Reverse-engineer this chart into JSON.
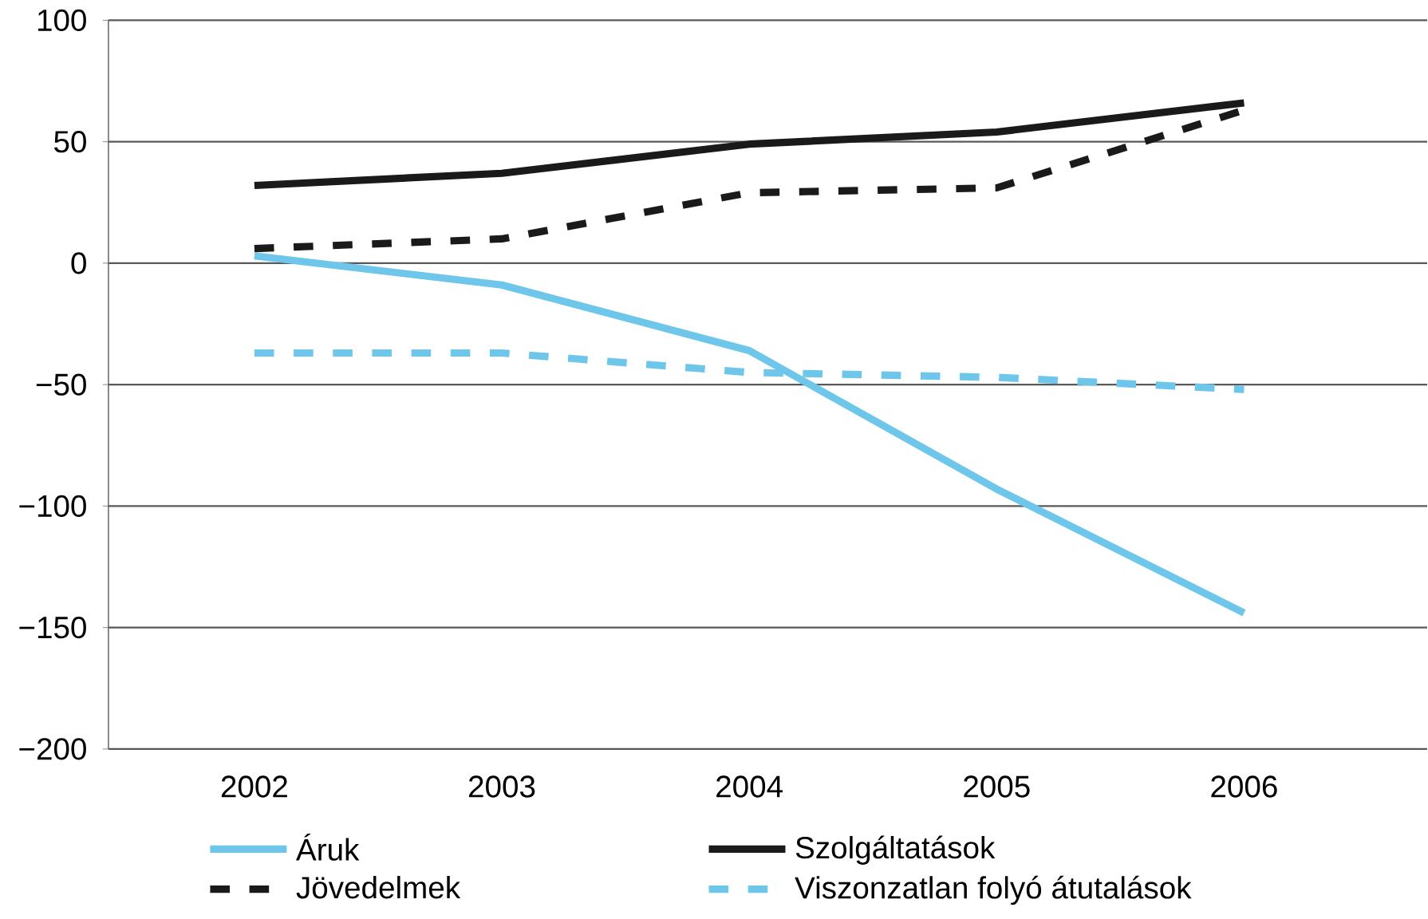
{
  "chart_data": {
    "type": "line",
    "categories": [
      "2002",
      "2003",
      "2004",
      "2005",
      "2006"
    ],
    "series": [
      {
        "name": "Áruk",
        "color": "#6ec6ea",
        "line_style": "solid",
        "values": [
          3,
          -9,
          -36,
          -93,
          -144
        ]
      },
      {
        "name": "Szolgáltatások",
        "color": "#1a1a1a",
        "line_style": "solid",
        "values": [
          32,
          37,
          49,
          54,
          66
        ]
      },
      {
        "name": "Jövedelmek",
        "color": "#1a1a1a",
        "line_style": "dashed",
        "values": [
          6,
          10,
          29,
          31,
          63
        ]
      },
      {
        "name": "Viszonzatlan folyó átutalások",
        "color": "#6ec6ea",
        "line_style": "dashed",
        "values": [
          -37,
          -37,
          -45,
          -47,
          -52
        ]
      }
    ],
    "ylim": [
      -200,
      100
    ],
    "yticks": [
      {
        "value": -200,
        "label": "−200"
      },
      {
        "value": -150,
        "label": "−150"
      },
      {
        "value": -100,
        "label": "−100"
      },
      {
        "value": -50,
        "label": "−50"
      },
      0,
      50,
      100
    ],
    "grid": "y",
    "legend": "bottom"
  }
}
